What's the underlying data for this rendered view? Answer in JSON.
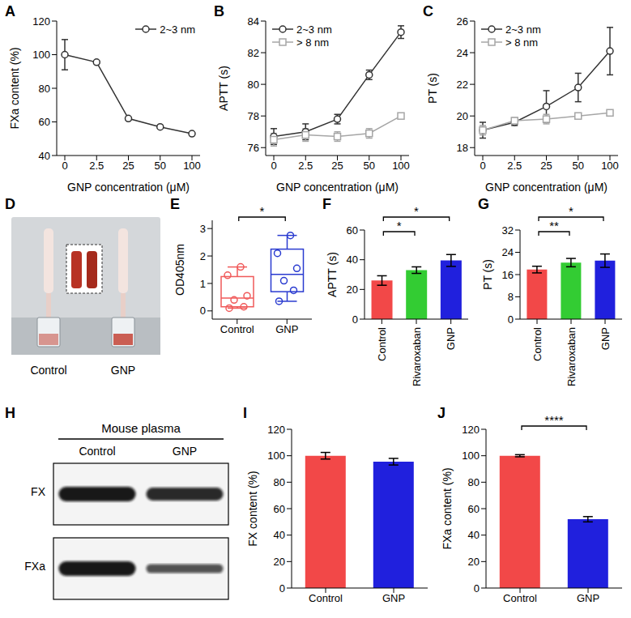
{
  "chart_data": [
    {
      "panel": "A",
      "type": "line",
      "x_label": "GNP concentration (μM)",
      "y_label": "FXa content (%)",
      "categories": [
        "0",
        "2.5",
        "25",
        "50",
        "100"
      ],
      "series": [
        {
          "name": "2~3 nm",
          "color": "#333333",
          "marker": "circle",
          "values": [
            100,
            95.5,
            62,
            57,
            53
          ],
          "errors": [
            9,
            0.8,
            0.8,
            0.6,
            0.6
          ]
        }
      ],
      "ylim": [
        40,
        120
      ],
      "yticks": [
        40,
        60,
        80,
        100,
        120
      ],
      "legend": "upper right"
    },
    {
      "panel": "B",
      "type": "line",
      "x_label": "GNP concentration (μM)",
      "y_label": "APTT (s)",
      "categories": [
        "0",
        "2.5",
        "25",
        "50",
        "100"
      ],
      "series": [
        {
          "name": "2~3 nm",
          "color": "#333333",
          "marker": "circle",
          "values": [
            76.7,
            77.0,
            77.8,
            80.6,
            83.3
          ],
          "errors": [
            0.5,
            0.5,
            0.3,
            0.3,
            0.4
          ]
        },
        {
          "name": "> 8 nm",
          "color": "#a6a6a6",
          "marker": "square",
          "values": [
            76.5,
            76.8,
            76.7,
            76.9,
            78.0
          ],
          "errors": [
            0.4,
            0.4,
            0.3,
            0.3,
            0.1
          ]
        }
      ],
      "ylim": [
        75.5,
        84
      ],
      "yticks": [
        76,
        78,
        80,
        82,
        84
      ],
      "legend": "upper left"
    },
    {
      "panel": "C",
      "type": "line",
      "x_label": "GNP concentration (μM)",
      "y_label": "PT (s)",
      "categories": [
        "0",
        "2.5",
        "25",
        "50",
        "100"
      ],
      "series": [
        {
          "name": "2~3 nm",
          "color": "#333333",
          "marker": "circle",
          "values": [
            19.1,
            19.6,
            20.6,
            21.8,
            24.1
          ],
          "errors": [
            0.5,
            0.2,
            1.0,
            0.9,
            1.5
          ]
        },
        {
          "name": "> 8 nm",
          "color": "#a6a6a6",
          "marker": "square",
          "values": [
            19.1,
            19.7,
            19.8,
            20.0,
            20.2
          ],
          "errors": [
            0.3,
            0.2,
            0.3,
            0.1,
            0.1
          ]
        }
      ],
      "ylim": [
        17.5,
        26
      ],
      "yticks": [
        18,
        20,
        22,
        24,
        26
      ],
      "legend": "upper left"
    },
    {
      "panel": "D",
      "type": "image",
      "labels": [
        "Control",
        "GNP"
      ]
    },
    {
      "panel": "E",
      "type": "box",
      "y_label": "OD405nm",
      "categories": [
        "Control",
        "GNP"
      ],
      "boxes": [
        {
          "color": "#f05a5a",
          "values": [
            0.1,
            0.15,
            0.4,
            0.55,
            1.3,
            1.6
          ],
          "min": 0.1,
          "q1": 0.15,
          "median": 0.47,
          "q3": 1.25,
          "max": 1.6
        },
        {
          "color": "#2a3bd0",
          "values": [
            0.35,
            0.75,
            1.1,
            1.55,
            2.1,
            2.75
          ],
          "min": 0.35,
          "q1": 0.7,
          "median": 1.33,
          "q3": 2.25,
          "max": 2.75
        }
      ],
      "ylim": [
        -0.3,
        3.3
      ],
      "yticks": [
        0,
        1,
        2,
        3
      ],
      "significance": [
        {
          "pair": [
            "Control",
            "GNP"
          ],
          "label": "*"
        }
      ]
    },
    {
      "panel": "F",
      "type": "bar",
      "y_label": "APTT (s)",
      "categories": [
        "Control",
        "Rivaroxaban",
        "GNP"
      ],
      "values": [
        26,
        33,
        39.5
      ],
      "errors": [
        3.2,
        2.2,
        4
      ],
      "colors": [
        "#f24848",
        "#33cc33",
        "#2020dd"
      ],
      "ylim": [
        0,
        60
      ],
      "yticks": [
        0,
        20,
        40,
        60
      ],
      "significance": [
        {
          "pair": [
            "Control",
            "Rivaroxaban"
          ],
          "label": "*"
        },
        {
          "pair": [
            "Control",
            "GNP"
          ],
          "label": "*"
        }
      ]
    },
    {
      "panel": "G",
      "type": "bar",
      "y_label": "PT (s)",
      "categories": [
        "Control",
        "Rivaroxaban",
        "GNP"
      ],
      "values": [
        17.8,
        20.3,
        21
      ],
      "errors": [
        1.2,
        1.5,
        2.4
      ],
      "colors": [
        "#f24848",
        "#33cc33",
        "#2020dd"
      ],
      "ylim": [
        0,
        32
      ],
      "yticks": [
        0,
        8,
        16,
        24,
        32
      ],
      "significance": [
        {
          "pair": [
            "Control",
            "Rivaroxaban"
          ],
          "label": "**"
        },
        {
          "pair": [
            "Control",
            "GNP"
          ],
          "label": "*"
        }
      ]
    },
    {
      "panel": "H",
      "type": "western_blot",
      "title": "Mouse plasma",
      "columns": [
        "Control",
        "GNP"
      ],
      "rows": [
        "FX",
        "FXa"
      ]
    },
    {
      "panel": "I",
      "type": "bar",
      "y_label": "FX content (%)",
      "categories": [
        "Control",
        "GNP"
      ],
      "values": [
        100,
        95.5
      ],
      "errors": [
        2.5,
        2.5
      ],
      "colors": [
        "#f24848",
        "#2020dd"
      ],
      "ylim": [
        0,
        120
      ],
      "yticks": [
        0,
        20,
        40,
        60,
        80,
        100,
        120
      ],
      "significance": []
    },
    {
      "panel": "J",
      "type": "bar",
      "y_label": "FXa content (%)",
      "categories": [
        "Control",
        "GNP"
      ],
      "values": [
        100,
        52
      ],
      "errors": [
        0.8,
        2
      ],
      "colors": [
        "#f24848",
        "#2020dd"
      ],
      "ylim": [
        0,
        120
      ],
      "yticks": [
        0,
        20,
        40,
        60,
        80,
        100,
        120
      ],
      "significance": [
        {
          "pair": [
            "Control",
            "GNP"
          ],
          "label": "****"
        }
      ]
    }
  ]
}
